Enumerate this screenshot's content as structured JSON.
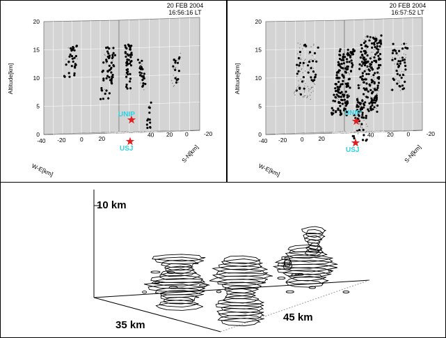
{
  "panels": [
    {
      "date": "20 FEB 2004",
      "time": "16:56:16 LT",
      "ylabel": "Altitude[km]",
      "xlabel": "W-E[km]",
      "zlabel": "S-N[km]",
      "site1": "UNIP",
      "site2": "USJ"
    },
    {
      "date": "20 FEB 2004",
      "time": "16:57:52 LT",
      "ylabel": "Altitude[km]",
      "xlabel": "W-E[km]",
      "zlabel": "S-N[km]",
      "site1": "UNIP",
      "site2": "USJ"
    }
  ],
  "bottom_panel": {
    "height_label": "10 km",
    "depth_label": "35 km",
    "width_label": "45 km"
  },
  "chart_data": [
    {
      "type": "scatter",
      "title": "20 FEB 2004 16:56:16 LT",
      "ylabel": "Altitude[km]",
      "xlabel": "W-E[km]",
      "zlabel": "S-N[km]",
      "z_ticks": [
        "0",
        "5",
        "10",
        "15",
        "20"
      ],
      "x_ticks": [
        "-40",
        "-20",
        "0",
        "20"
      ],
      "y_ticks": [
        "-20",
        "0",
        "20",
        "40"
      ],
      "zlim": [
        0,
        20
      ],
      "grid": true,
      "markers": [
        {
          "name": "UNIP",
          "color": "#e02020"
        },
        {
          "name": "USJ",
          "color": "#e02020"
        }
      ]
    },
    {
      "type": "scatter",
      "title": "20 FEB 2004 16:57:52 LT",
      "ylabel": "Altitude[km]",
      "xlabel": "W-E[km]",
      "zlabel": "S-N[km]",
      "z_ticks": [
        "0",
        "5",
        "10",
        "15",
        "20"
      ],
      "x_ticks": [
        "-40",
        "-20",
        "0",
        "20"
      ],
      "y_ticks": [
        "-20",
        "0",
        "20",
        "40"
      ],
      "zlim": [
        0,
        20
      ],
      "grid": true,
      "markers": [
        {
          "name": "UNIP",
          "color": "#e02020"
        },
        {
          "name": "USJ",
          "color": "#e02020"
        }
      ]
    }
  ],
  "colors": {
    "wall": "#d4d4d4",
    "floor": "#8e8e8e",
    "grid": "#ffffff",
    "site_marker": "#e02020",
    "site_label": "#2ad4e6"
  }
}
